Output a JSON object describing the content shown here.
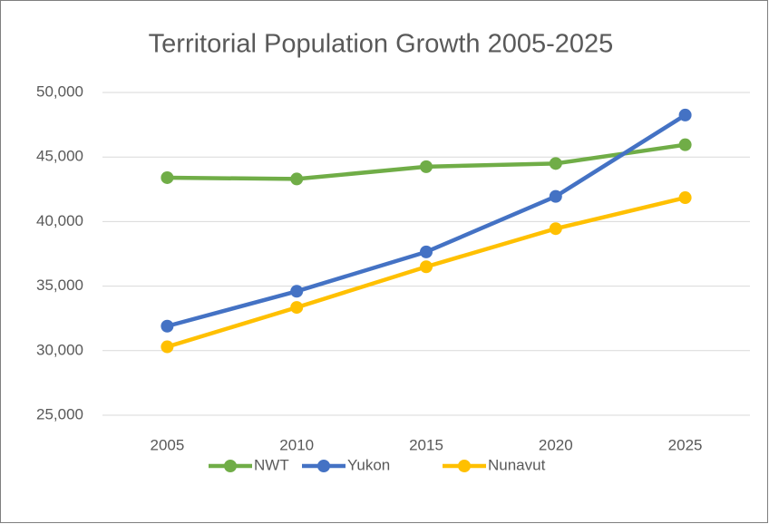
{
  "chart_data": {
    "type": "line",
    "title": "Territorial Population Growth 2005-2025",
    "categories": [
      "2005",
      "2010",
      "2015",
      "2020",
      "2025"
    ],
    "series": [
      {
        "name": "NWT",
        "color": "#70ad47",
        "values": [
          43400,
          43300,
          44250,
          44500,
          45950
        ]
      },
      {
        "name": "Yukon",
        "color": "#4472c4",
        "values": [
          31900,
          34600,
          37650,
          41950,
          48250
        ]
      },
      {
        "name": "Nunavut",
        "color": "#ffc000",
        "values": [
          30300,
          33350,
          36500,
          39450,
          41850
        ]
      }
    ],
    "ylim": [
      25000,
      50000
    ],
    "yticks": [
      {
        "value": 25000,
        "label": "25,000"
      },
      {
        "value": 30000,
        "label": "30,000"
      },
      {
        "value": 35000,
        "label": "35,000"
      },
      {
        "value": 40000,
        "label": "40,000"
      },
      {
        "value": 45000,
        "label": "45,000"
      },
      {
        "value": 50000,
        "label": "50,000"
      }
    ],
    "grid": true,
    "legend": "bottom"
  }
}
